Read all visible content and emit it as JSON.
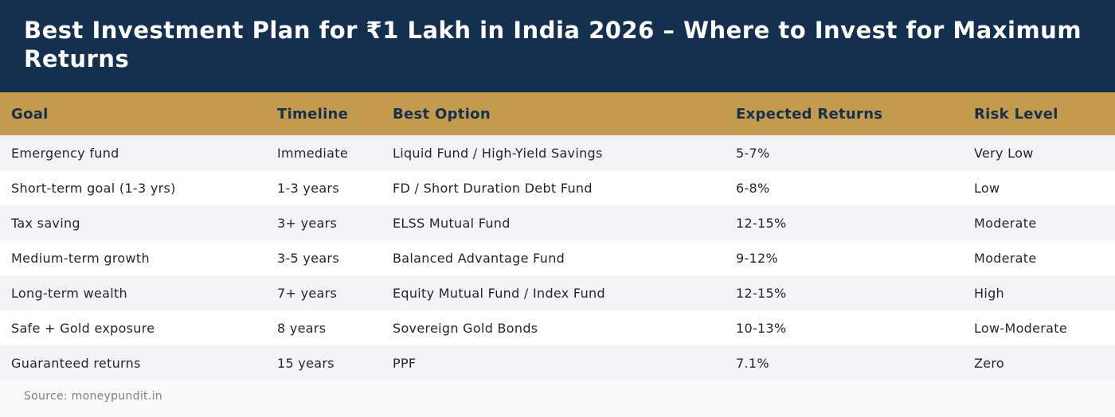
{
  "page": {
    "title": "Best Investment Plan for ₹1 Lakh in India 2026 – Where to Invest for Maximum Returns",
    "source": "Source: moneypundit.in"
  },
  "table": {
    "headers": [
      "Goal",
      "Timeline",
      "Best Option",
      "Expected Returns",
      "Risk Level"
    ],
    "rows": [
      [
        "Emergency fund",
        "Immediate",
        "Liquid Fund / High-Yield Savings",
        "5-7%",
        "Very Low"
      ],
      [
        "Short-term goal (1-3 yrs)",
        "1-3 years",
        "FD / Short Duration Debt Fund",
        "6-8%",
        "Low"
      ],
      [
        "Tax saving",
        "3+ years",
        "ELSS Mutual Fund",
        "12-15%",
        "Moderate"
      ],
      [
        "Medium-term growth",
        "3-5 years",
        "Balanced Advantage Fund",
        "9-12%",
        "Moderate"
      ],
      [
        "Long-term wealth",
        "7+ years",
        "Equity Mutual Fund / Index Fund",
        "12-15%",
        "High"
      ],
      [
        "Safe + Gold exposure",
        "8 years",
        "Sovereign Gold Bonds",
        "10-13%",
        "Low-Moderate"
      ],
      [
        "Guaranteed returns",
        "15 years",
        "PPF",
        "7.1%",
        "Zero"
      ]
    ]
  },
  "colors": {
    "header_bg": "#14304f",
    "table_header_bg": "#c49a4c",
    "row_alt_bg": "#f3f4f6",
    "source_text": "#7a7f88"
  }
}
